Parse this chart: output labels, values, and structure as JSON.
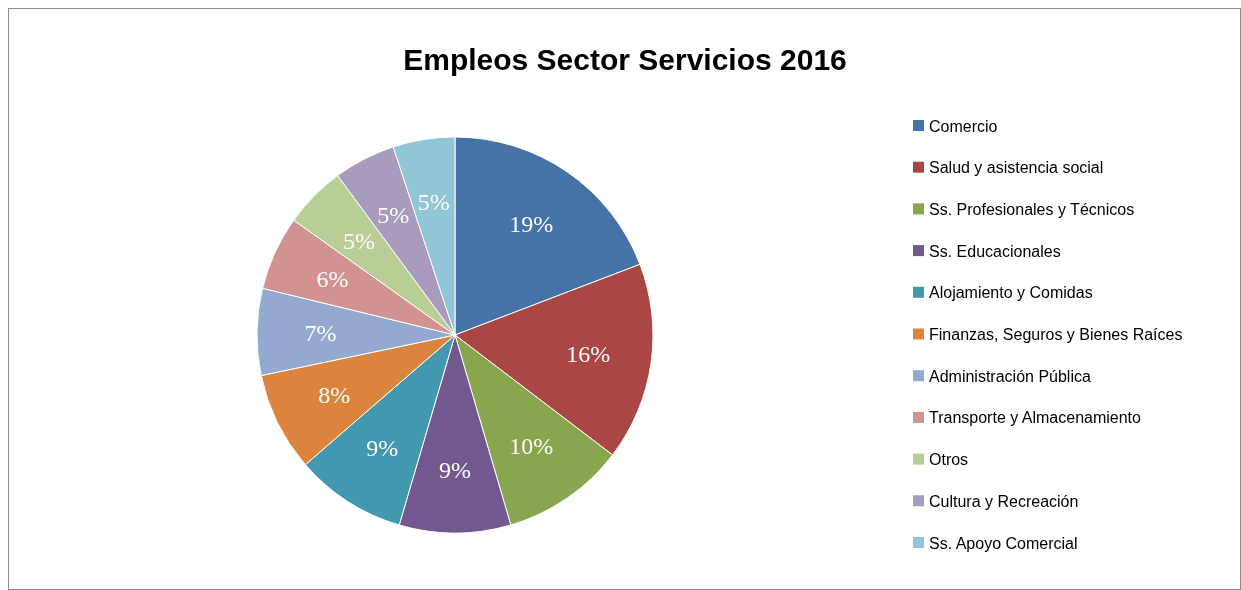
{
  "chart_data": {
    "type": "pie",
    "title": "Empleos Sector Servicios 2016",
    "categories": [
      "Comercio",
      "Salud y asistencia social",
      "Ss. Profesionales y Técnicos",
      "Ss. Educacionales",
      "Alojamiento y Comidas",
      "Finanzas, Seguros y Bienes Raíces",
      "Administración Pública",
      "Transporte y Almacenamiento",
      "Otros",
      "Cultura y Recreación",
      "Ss. Apoyo Comercial"
    ],
    "values": [
      19,
      16,
      10,
      9,
      9,
      8,
      7,
      6,
      5,
      5,
      5
    ],
    "colors": [
      "#4572a7",
      "#aa4643",
      "#89a54e",
      "#71588f",
      "#4198af",
      "#db843d",
      "#93a9cf",
      "#d19392",
      "#b9cd96",
      "#a99bbd",
      "#92c5d6"
    ],
    "value_labels": [
      "19%",
      "16%",
      "10%",
      "9%",
      "9%",
      "8%",
      "7%",
      "6%",
      "5%",
      "5%",
      "5%"
    ],
    "legend": "right"
  }
}
